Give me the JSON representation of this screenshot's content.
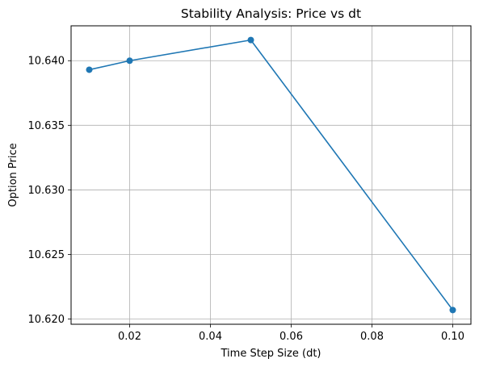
{
  "chart_data": {
    "type": "line",
    "title": "Stability Analysis: Price vs dt",
    "xlabel": "Time Step Size (dt)",
    "ylabel": "Option Price",
    "xlim": [
      0.0055,
      0.1045
    ],
    "ylim": [
      10.6196,
      10.6427
    ],
    "grid": true,
    "x_ticks": [
      0.02,
      0.04,
      0.06,
      0.08,
      0.1
    ],
    "x_tick_labels": [
      "0.02",
      "0.04",
      "0.06",
      "0.08",
      "0.10"
    ],
    "y_ticks": [
      10.62,
      10.625,
      10.63,
      10.635,
      10.64
    ],
    "y_tick_labels": [
      "10.620",
      "10.625",
      "10.630",
      "10.635",
      "10.640"
    ],
    "series": [
      {
        "color": "#1f77b4",
        "marker": "circle",
        "x": [
          0.01,
          0.02,
          0.05,
          0.1
        ],
        "y": [
          10.6393,
          10.64,
          10.6416,
          10.6207
        ]
      }
    ]
  }
}
